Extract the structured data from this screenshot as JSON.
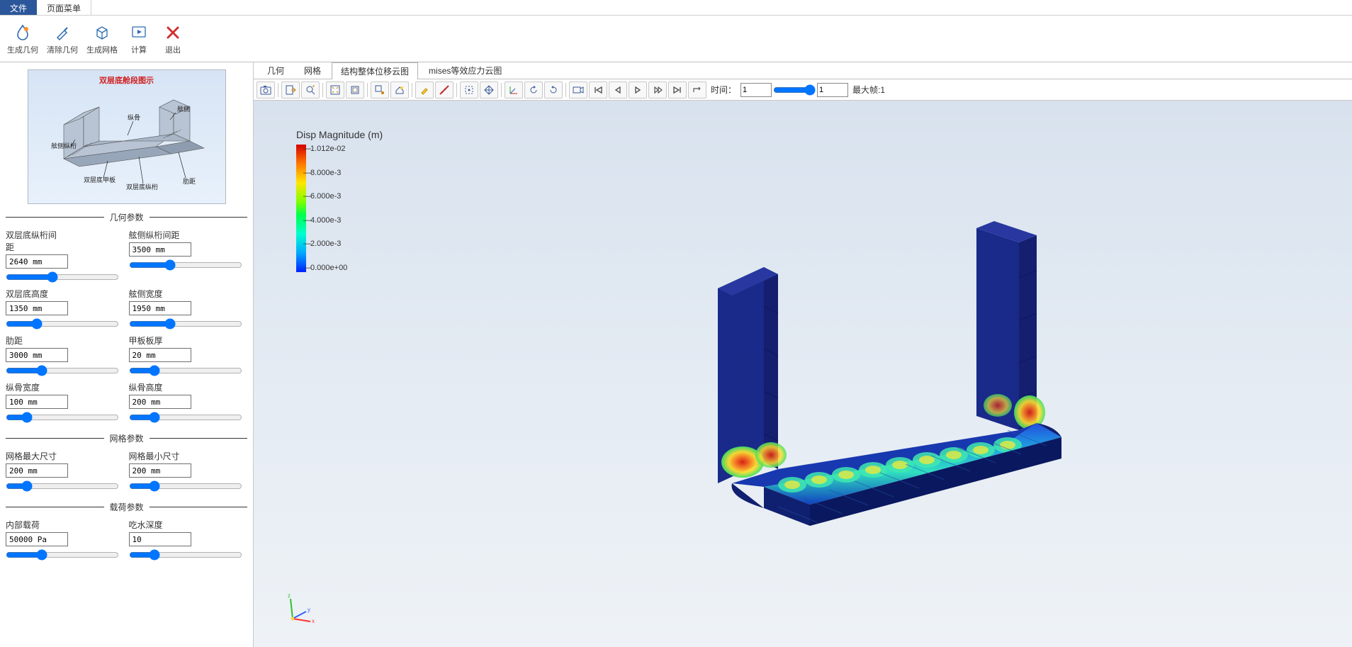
{
  "menu": {
    "tabs": [
      "文件",
      "页面菜单"
    ],
    "active": 0
  },
  "ribbon": [
    {
      "label": "生成几何",
      "icon": "droplet"
    },
    {
      "label": "清除几何",
      "icon": "brush"
    },
    {
      "label": "生成网格",
      "icon": "cube"
    },
    {
      "label": "计算",
      "icon": "play"
    },
    {
      "label": "退出",
      "icon": "close"
    }
  ],
  "preview": {
    "title": "双层底舱段图示",
    "annotations": [
      "舷侧",
      "纵骨",
      "舷侧纵桁",
      "双层底甲板",
      "双层底纵桁",
      "肋距"
    ]
  },
  "sections": {
    "geometry": {
      "title": "几何参数",
      "params": [
        {
          "label": "双层底纵桁间距",
          "value": "2640 mm",
          "slider": 40
        },
        {
          "label": "舷侧纵桁间距",
          "value": "3500 mm",
          "slider": 35
        },
        {
          "label": "双层底高度",
          "value": "1350 mm",
          "slider": 25
        },
        {
          "label": "舷侧宽度",
          "value": "1950 mm",
          "slider": 35
        },
        {
          "label": "肋距",
          "value": "3000 mm",
          "slider": 30
        },
        {
          "label": "甲板板厚",
          "value": "20 mm",
          "slider": 20
        },
        {
          "label": "纵骨宽度",
          "value": "100 mm",
          "slider": 15
        },
        {
          "label": "纵骨高度",
          "value": "200 mm",
          "slider": 20
        }
      ]
    },
    "mesh": {
      "title": "网格参数",
      "params": [
        {
          "label": "网格最大尺寸",
          "value": "200 mm",
          "slider": 15
        },
        {
          "label": "网格最小尺寸",
          "value": "200 mm",
          "slider": 20
        }
      ]
    },
    "load": {
      "title": "载荷参数",
      "params": [
        {
          "label": "内部载荷",
          "value": "50000 Pa",
          "slider": 30
        },
        {
          "label": "吃水深度",
          "value": "10",
          "slider": 20
        }
      ]
    }
  },
  "content_tabs": {
    "items": [
      "几何",
      "网格",
      "结构整体位移云图",
      "mises等效应力云图"
    ],
    "active": 2
  },
  "viewer_toolbar": {
    "time_label": "时间：",
    "time_value": "1",
    "frame_value": "1",
    "max_frame_label": "最大帧:1"
  },
  "legend": {
    "title": "Disp Magnitude (m)",
    "ticks": [
      "1.012e-02",
      "8.000e-3",
      "6.000e-3",
      "4.000e-3",
      "2.000e-3",
      "0.000e+00"
    ],
    "gradient": [
      "#d40000",
      "#ff7800",
      "#ffe600",
      "#7cff00",
      "#00ff4a",
      "#00ffcf",
      "#00a8ff",
      "#0020ff"
    ]
  },
  "triad": {
    "axes": [
      "x",
      "y",
      "z"
    ],
    "colors": [
      "#ff3030",
      "#30c030",
      "#3060ff"
    ]
  },
  "model_colors": {
    "wall": "#1a2a8a",
    "wall_edge": "#0a1550",
    "floor_low": "#0040ff",
    "floor_mid": "#00d0d0",
    "hotspot": [
      "#ffe030",
      "#ff8020",
      "#e02010"
    ]
  }
}
